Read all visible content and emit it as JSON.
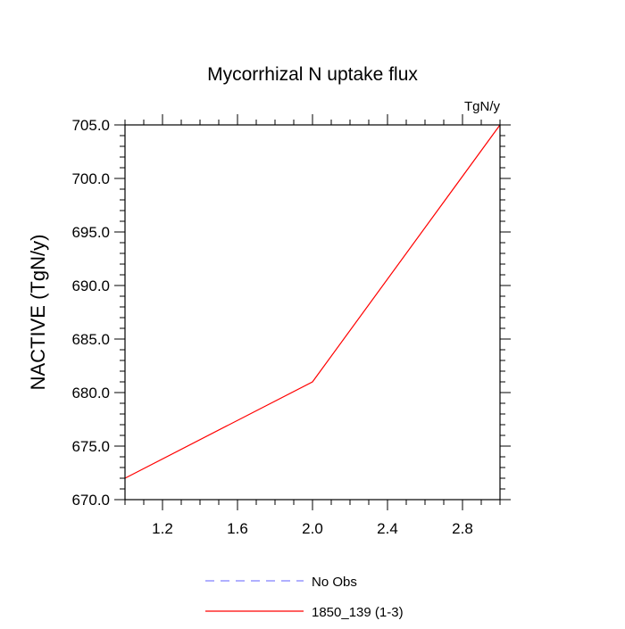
{
  "chart_data": {
    "type": "line",
    "title": "Mycorrhizal N uptake flux",
    "units_label": "TgN/y",
    "ylabel": "NACTIVE  (TgN/y)",
    "xlabel": "",
    "xlim": [
      1.0,
      3.0
    ],
    "ylim": [
      670.0,
      705.0
    ],
    "x_ticks": [
      1.2,
      1.6,
      2.0,
      2.4,
      2.8
    ],
    "x_tick_labels": [
      "1.2",
      "1.6",
      "2.0",
      "2.4",
      "2.8"
    ],
    "y_ticks": [
      670,
      675,
      680,
      685,
      690,
      695,
      700,
      705
    ],
    "y_tick_labels": [
      "670.0",
      "675.0",
      "680.0",
      "685.0",
      "690.0",
      "695.0",
      "700.0",
      "705.0"
    ],
    "grid": false,
    "legend_position": "bottom",
    "series": [
      {
        "name": "No Obs",
        "x": [],
        "y": [],
        "color": "#8080ff",
        "dash": "dashed"
      },
      {
        "name": "1850_139 (1-3)",
        "x": [
          1.0,
          2.0,
          3.0
        ],
        "y": [
          672.0,
          681.0,
          705.0
        ],
        "color": "#ff0000",
        "dash": "solid"
      }
    ]
  }
}
